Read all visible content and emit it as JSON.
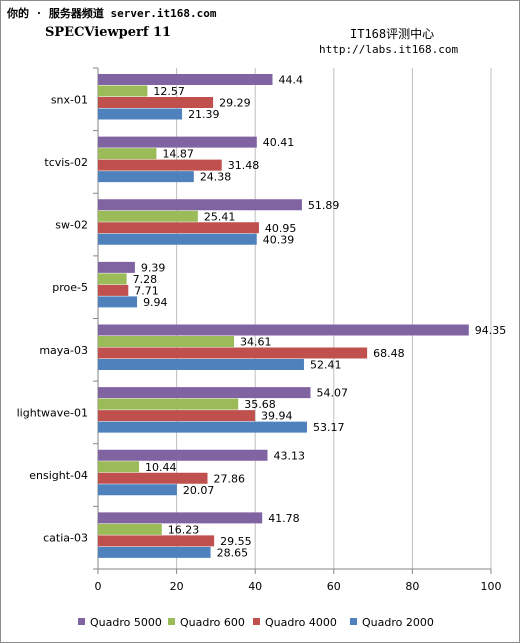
{
  "header": {
    "site": "你的 · 服务器频道 server.it168.com",
    "title": "SPECViewperf 11",
    "lab": "IT168评测中心",
    "url": "http://labs.it168.com"
  },
  "chart_data": {
    "type": "bar",
    "orientation": "horizontal",
    "categories": [
      "snx-01",
      "tcvis-02",
      "sw-02",
      "proe-5",
      "maya-03",
      "lightwave-01",
      "ensight-04",
      "catia-03"
    ],
    "series": [
      {
        "name": "Quadro 5000",
        "color": "#8064a2",
        "values": [
          44.4,
          40.41,
          51.89,
          9.39,
          94.35,
          54.07,
          43.13,
          41.78
        ]
      },
      {
        "name": "Quadro 600",
        "color": "#9bbb59",
        "values": [
          12.57,
          14.87,
          25.41,
          7.28,
          34.61,
          35.68,
          10.44,
          16.23
        ]
      },
      {
        "name": "Quadro 4000",
        "color": "#c0504d",
        "values": [
          29.29,
          31.48,
          40.95,
          7.71,
          68.48,
          39.94,
          27.86,
          29.55
        ]
      },
      {
        "name": "Quadro 2000",
        "color": "#4f81bd",
        "values": [
          21.39,
          24.38,
          40.39,
          9.94,
          52.41,
          53.17,
          20.07,
          28.65
        ]
      }
    ],
    "value_labels": [
      [
        "44.4",
        "40.41",
        "51.89",
        "9.39",
        "94.35",
        "54.07",
        "43.13",
        "41.78"
      ],
      [
        "12.57",
        "14.87",
        "25.41",
        "7.28",
        "34.61",
        "35.68",
        "10.44",
        "16.23"
      ],
      [
        "29.29",
        "31.48",
        "40.95",
        "7.71",
        "68.48",
        "39.94",
        "27.86",
        "29.55"
      ],
      [
        "21.39",
        "24.38",
        "40.39",
        "9.94",
        "52.41",
        "53.17",
        "20.07",
        "28.65"
      ]
    ],
    "xlim": [
      0,
      100
    ],
    "xticks": [
      0,
      20,
      40,
      60,
      80,
      100
    ],
    "xtick_labels": [
      "0",
      "20",
      "40",
      "60",
      "80",
      "100"
    ],
    "grid": true,
    "legend_position": "bottom",
    "title": "SPECViewperf 11"
  }
}
